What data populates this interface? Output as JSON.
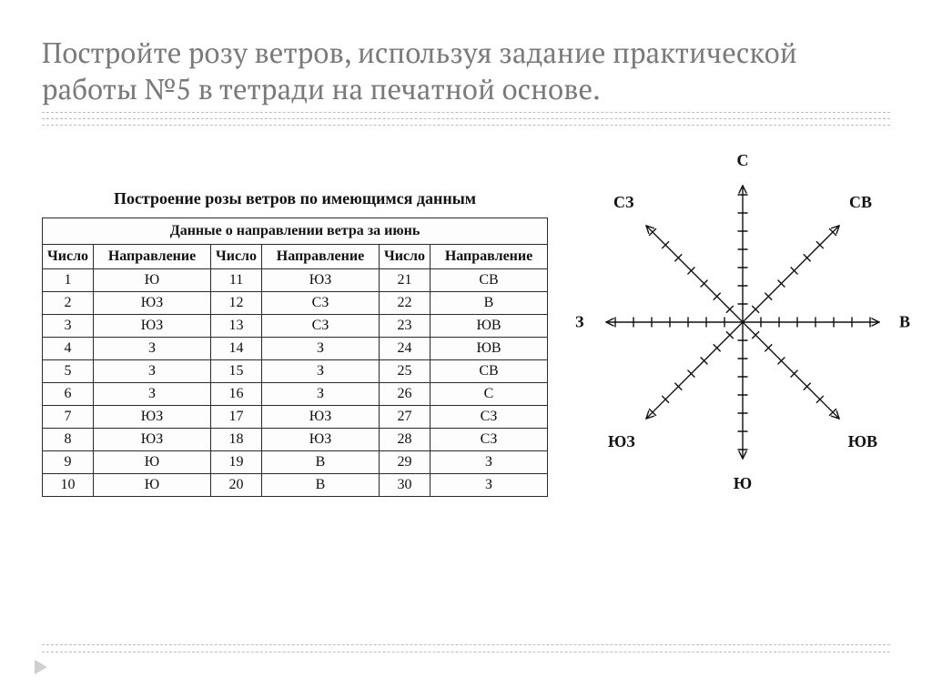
{
  "heading": "Постройте розу ветров, используя задание практической работы №5 в тетради на печатной основе.",
  "table": {
    "title": "Построение розы ветров по имеющимся данным",
    "super_header": "Данные о направлении ветра за июнь",
    "col_labels": {
      "num": "Число",
      "dir": "Направление"
    },
    "rows": [
      [
        "1",
        "Ю",
        "11",
        "ЮЗ",
        "21",
        "СВ"
      ],
      [
        "2",
        "ЮЗ",
        "12",
        "СЗ",
        "22",
        "В"
      ],
      [
        "3",
        "ЮЗ",
        "13",
        "СЗ",
        "23",
        "ЮВ"
      ],
      [
        "4",
        "З",
        "14",
        "З",
        "24",
        "ЮВ"
      ],
      [
        "5",
        "З",
        "15",
        "З",
        "25",
        "СВ"
      ],
      [
        "6",
        "З",
        "16",
        "З",
        "26",
        "С"
      ],
      [
        "7",
        "ЮЗ",
        "17",
        "ЮЗ",
        "27",
        "СЗ"
      ],
      [
        "8",
        "ЮЗ",
        "18",
        "ЮЗ",
        "28",
        "СЗ"
      ],
      [
        "9",
        "Ю",
        "19",
        "В",
        "29",
        "З"
      ],
      [
        "10",
        "Ю",
        "20",
        "В",
        "30",
        "З"
      ]
    ]
  },
  "compass": {
    "labels": {
      "n": "С",
      "ne": "СВ",
      "e": "В",
      "se": "ЮВ",
      "s": "Ю",
      "sw": "ЮЗ",
      "w": "З",
      "nw": "СЗ"
    },
    "axis_half_length": 150,
    "tick_count": 7,
    "tick_spacing": 20,
    "tick_half_len": 5,
    "stroke_color": "#111111",
    "stroke_width": 1.4
  },
  "colors": {
    "heading_text": "#7a7a7a",
    "divider": "#bdbdbd",
    "table_border": "#2a2a2a",
    "text_dark": "#111111",
    "background": "#ffffff",
    "nav_arrow": "#cfcfcf"
  },
  "fonts": {
    "heading_size_pt": 23,
    "table_title_size_pt": 13.5,
    "table_body_size_pt": 12,
    "compass_label_size_pt": 13.5
  }
}
